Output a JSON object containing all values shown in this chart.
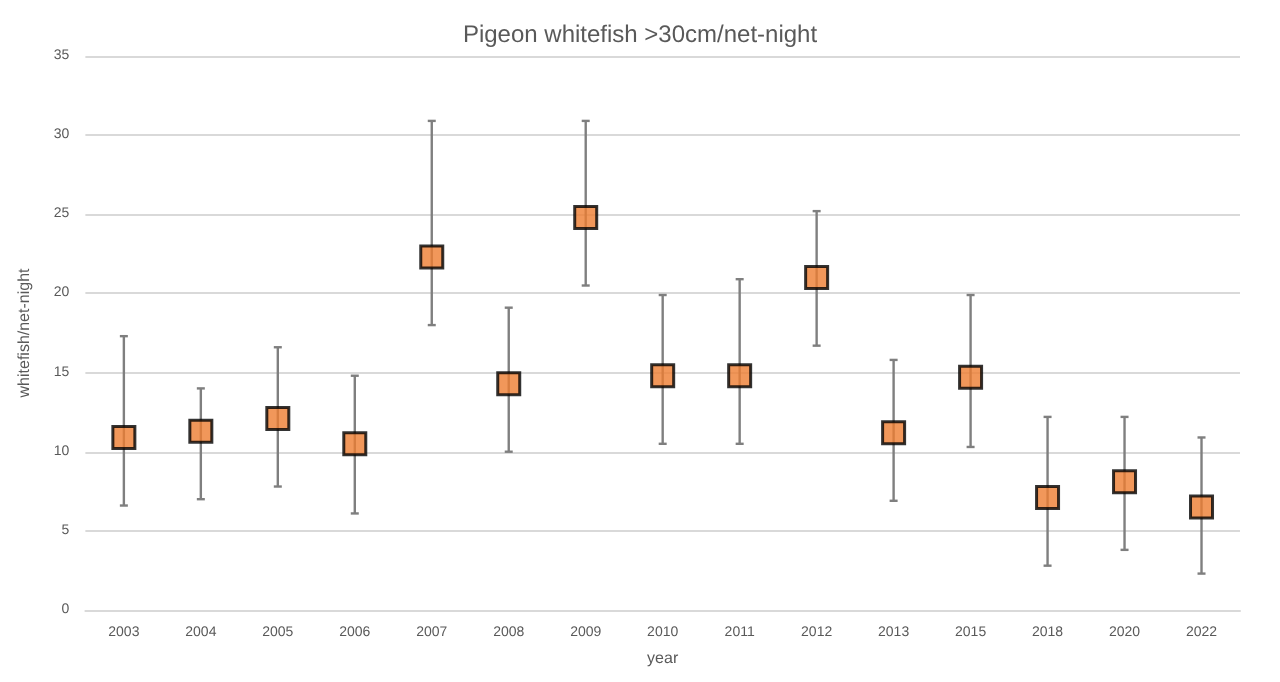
{
  "chart_data": {
    "type": "scatter",
    "title": "Pigeon whitefish >30cm/net-night",
    "xlabel": "year",
    "ylabel": "whitefish/net-night",
    "categories": [
      "2003",
      "2004",
      "2005",
      "2006",
      "2007",
      "2008",
      "2009",
      "2010",
      "2011",
      "2012",
      "2013",
      "2015",
      "2018",
      "2020",
      "2022"
    ],
    "values": [
      10.9,
      11.3,
      12.1,
      10.5,
      22.3,
      14.3,
      24.8,
      14.8,
      14.8,
      21.0,
      11.2,
      14.7,
      7.1,
      8.1,
      6.5
    ],
    "errors": [
      [
        6.6,
        17.3
      ],
      [
        7.0,
        14.0
      ],
      [
        7.8,
        16.6
      ],
      [
        6.1,
        14.8
      ],
      [
        18.0,
        30.9
      ],
      [
        10.0,
        19.1
      ],
      [
        20.5,
        30.9
      ],
      [
        10.5,
        19.9
      ],
      [
        10.5,
        20.9
      ],
      [
        16.7,
        25.2
      ],
      [
        6.9,
        15.8
      ],
      [
        10.3,
        19.9
      ],
      [
        2.8,
        12.2
      ],
      [
        3.8,
        12.2
      ],
      [
        2.3,
        10.9
      ]
    ],
    "color": "#ed7d31",
    "marker": "square",
    "ylim": [
      0,
      35
    ],
    "yticks": [
      0,
      5,
      10,
      15,
      20,
      25,
      30,
      35
    ],
    "grid": "y"
  }
}
